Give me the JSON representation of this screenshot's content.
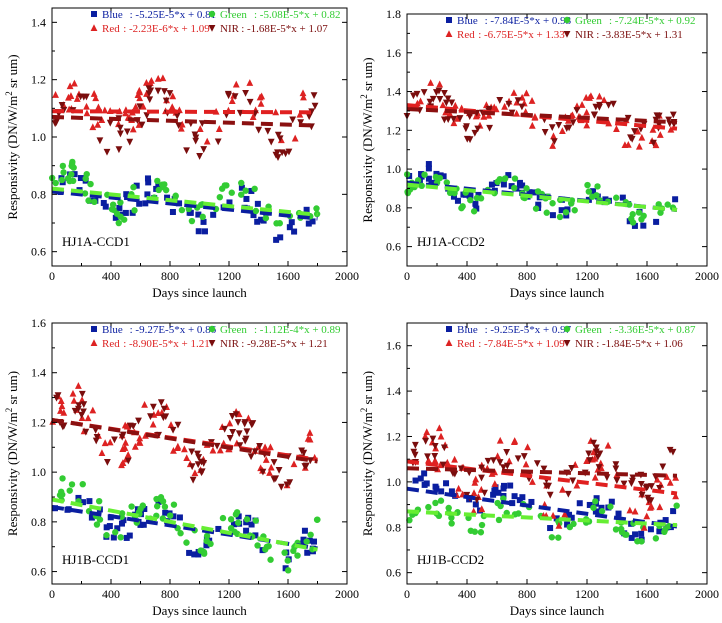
{
  "colors": {
    "blue": "#0a1ea0",
    "green": "#33cc33",
    "green_fit": "#66ee33",
    "red": "#dd2222",
    "red_fit": "#e02020",
    "nir": "#7a0d0d",
    "nir_fit": "#8b1010",
    "axis": "#000000"
  },
  "chart_data": [
    {
      "type": "scatter",
      "panel_label": "HJ1A-CCD1",
      "xlabel": "Days since launch",
      "ylabel": "Responsivity (DN/W/m",
      "ylabel_sup": "2",
      "ylabel_tail": " sr um)",
      "xlim": [
        0,
        2000
      ],
      "ylim": [
        0.55,
        1.45
      ],
      "xticks": [
        0,
        400,
        800,
        1200,
        1600,
        2000
      ],
      "yticks": [
        0.6,
        0.8,
        1.0,
        1.2,
        1.4
      ],
      "ytick_labels": [
        "0.6",
        "0.8",
        "1.0",
        "1.2",
        "1.4"
      ],
      "legend": [
        {
          "band": "Blue",
          "eq": ": -5.25E-5*x + 0.81",
          "marker": "square"
        },
        {
          "band": "Green",
          "eq": ": -5.08E-5*x + 0.82",
          "marker": "circle"
        },
        {
          "band": "Red",
          "eq": ": -2.23E-6*x + 1.09",
          "marker": "triangle-up"
        },
        {
          "band": "NIR",
          "eq": ": -1.68E-5*x + 1.07",
          "marker": "triangle-down"
        }
      ],
      "series": [
        {
          "band": "Blue",
          "slope": -5.25e-05,
          "intercept": 0.81,
          "base": 0.78,
          "noise": 0.06,
          "seed": 11,
          "count": 60
        },
        {
          "band": "Green",
          "slope": -5.08e-05,
          "intercept": 0.82,
          "base": 0.79,
          "noise": 0.065,
          "seed": 23,
          "count": 70
        },
        {
          "band": "Red",
          "slope": -2.23e-06,
          "intercept": 1.09,
          "base": 1.08,
          "noise": 0.08,
          "seed": 37,
          "count": 70
        },
        {
          "band": "NIR",
          "slope": -1.68e-05,
          "intercept": 1.07,
          "base": 1.05,
          "noise": 0.08,
          "seed": 41,
          "count": 70
        }
      ]
    },
    {
      "type": "scatter",
      "panel_label": "HJ1A-CCD2",
      "xlabel": "Days since launch",
      "ylabel": "Responsivity (DN/W/m",
      "ylabel_sup": "2",
      "ylabel_tail": " sr um)",
      "xlim": [
        0,
        2000
      ],
      "ylim": [
        0.5,
        1.8
      ],
      "xticks": [
        0,
        400,
        800,
        1200,
        1600,
        2000
      ],
      "yticks": [
        0.6,
        0.8,
        1.0,
        1.2,
        1.4,
        1.6,
        1.8
      ],
      "ytick_labels": [
        "0.6",
        "0.8",
        "1.0",
        "1.2",
        "1.4",
        "1.6",
        "1.8"
      ],
      "legend": [
        {
          "band": "Blue",
          "eq": ": -7.84E-5*x + 0.93",
          "marker": "square"
        },
        {
          "band": "Green",
          "eq": ": -7.24E-5*x + 0.92",
          "marker": "circle"
        },
        {
          "band": "Red",
          "eq": ": -6.75E-5*x + 1.33",
          "marker": "triangle-up"
        },
        {
          "band": "NIR",
          "eq": ": -3.83E-5*x + 1.31",
          "marker": "triangle-down"
        }
      ],
      "series": [
        {
          "band": "Blue",
          "slope": -7.84e-05,
          "intercept": 0.93,
          "base": 0.87,
          "noise": 0.07,
          "seed": 53,
          "count": 60
        },
        {
          "band": "Green",
          "slope": -7.24e-05,
          "intercept": 0.92,
          "base": 0.86,
          "noise": 0.07,
          "seed": 59,
          "count": 70
        },
        {
          "band": "Red",
          "slope": -6.75e-05,
          "intercept": 1.33,
          "base": 1.28,
          "noise": 0.1,
          "seed": 61,
          "count": 70
        },
        {
          "band": "NIR",
          "slope": -3.83e-05,
          "intercept": 1.31,
          "base": 1.25,
          "noise": 0.09,
          "seed": 67,
          "count": 70
        }
      ]
    },
    {
      "type": "scatter",
      "panel_label": "HJ1B-CCD1",
      "xlabel": "Days since launch",
      "ylabel": "Responsivity (DN/W/m",
      "ylabel_sup": "2",
      "ylabel_tail": " sr um)",
      "xlim": [
        0,
        2000
      ],
      "ylim": [
        0.55,
        1.6
      ],
      "xticks": [
        0,
        400,
        800,
        1200,
        1600,
        2000
      ],
      "yticks": [
        0.6,
        0.8,
        1.0,
        1.2,
        1.4,
        1.6
      ],
      "ytick_labels": [
        "0.6",
        "0.8",
        "1.0",
        "1.2",
        "1.4",
        "1.6"
      ],
      "legend": [
        {
          "band": "Blue",
          "eq": ": -9.27E-5*x + 0.86",
          "marker": "square"
        },
        {
          "band": "Green",
          "eq": ": -1.12E-4*x + 0.89",
          "marker": "circle"
        },
        {
          "band": "Red",
          "eq": ": -8.90E-5*x + 1.21",
          "marker": "triangle-up"
        },
        {
          "band": "NIR",
          "eq": ": -9.28E-5*x + 1.21",
          "marker": "triangle-down"
        }
      ],
      "series": [
        {
          "band": "Blue",
          "slope": -9.27e-05,
          "intercept": 0.86,
          "base": 0.78,
          "noise": 0.07,
          "seed": 71,
          "count": 60
        },
        {
          "band": "Green",
          "slope": -0.000112,
          "intercept": 0.89,
          "base": 0.79,
          "noise": 0.08,
          "seed": 73,
          "count": 80
        },
        {
          "band": "Red",
          "slope": -8.9e-05,
          "intercept": 1.21,
          "base": 1.13,
          "noise": 0.1,
          "seed": 79,
          "count": 80
        },
        {
          "band": "NIR",
          "slope": -9.28e-05,
          "intercept": 1.21,
          "base": 1.13,
          "noise": 0.1,
          "seed": 83,
          "count": 80
        }
      ]
    },
    {
      "type": "scatter",
      "panel_label": "HJ1B-CCD2",
      "xlabel": "Days since launch",
      "ylabel": "Responsivity (DN/W/m",
      "ylabel_sup": "2",
      "ylabel_tail": " sr um)",
      "xlim": [
        0,
        2000
      ],
      "ylim": [
        0.55,
        1.7
      ],
      "xticks": [
        0,
        400,
        800,
        1200,
        1600,
        2000
      ],
      "yticks": [
        0.6,
        0.8,
        1.0,
        1.2,
        1.4,
        1.6
      ],
      "ytick_labels": [
        "0.6",
        "0.8",
        "1.0",
        "1.2",
        "1.4",
        "1.6"
      ],
      "legend": [
        {
          "band": "Blue",
          "eq": ": -9.25E-5*x + 0.97",
          "marker": "square"
        },
        {
          "band": "Green",
          "eq": ": -3.36E-5*x + 0.87",
          "marker": "circle"
        },
        {
          "band": "Red",
          "eq": ": -7.84E-5*x + 1.09",
          "marker": "triangle-up"
        },
        {
          "band": "NIR",
          "eq": ": -1.84E-5*x + 1.06",
          "marker": "triangle-down"
        }
      ],
      "series": [
        {
          "band": "Blue",
          "slope": -9.25e-05,
          "intercept": 0.97,
          "base": 0.88,
          "noise": 0.06,
          "seed": 89,
          "count": 55
        },
        {
          "band": "Green",
          "slope": -3.36e-05,
          "intercept": 0.87,
          "base": 0.84,
          "noise": 0.06,
          "seed": 97,
          "count": 60
        },
        {
          "band": "Red",
          "slope": -7.84e-05,
          "intercept": 1.09,
          "base": 1.12,
          "noise": 0.13,
          "seed": 101,
          "count": 75
        },
        {
          "band": "NIR",
          "slope": -1.84e-05,
          "intercept": 1.06,
          "base": 1.03,
          "noise": 0.09,
          "seed": 103,
          "count": 75
        }
      ]
    }
  ]
}
